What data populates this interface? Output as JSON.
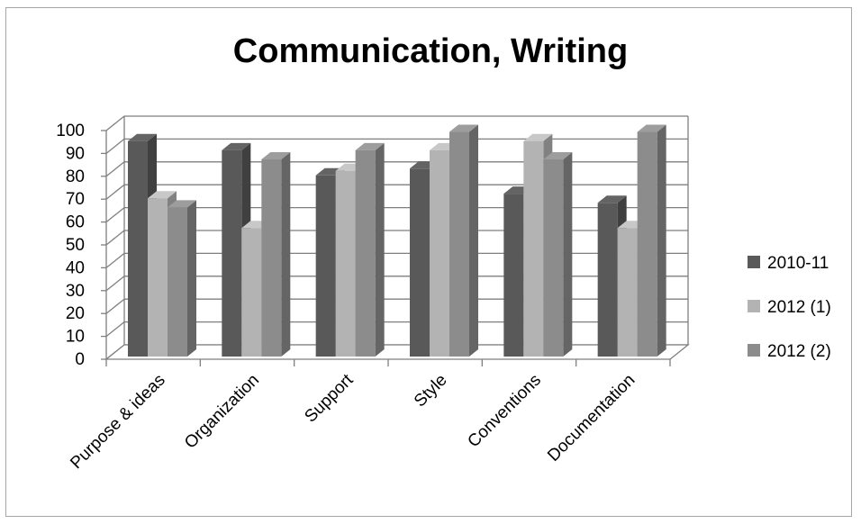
{
  "chart_data": {
    "type": "bar",
    "title": "Communication, Writing",
    "xlabel": "",
    "ylabel": "",
    "categories": [
      "Purpose & ideas",
      "Organization",
      "Support",
      "Style",
      "Conventions",
      "Documentation"
    ],
    "ylim": [
      0,
      100
    ],
    "yticks": [
      0,
      10,
      20,
      30,
      40,
      50,
      60,
      70,
      80,
      90,
      100
    ],
    "grid": true,
    "legend_position": "right",
    "series": [
      {
        "name": "2010-11",
        "color": "#595959",
        "values": [
          95,
          91,
          80,
          83,
          72,
          68
        ]
      },
      {
        "name": "2012 (1)",
        "color": "#b3b3b3",
        "values": [
          70,
          57,
          82,
          91,
          95,
          57
        ]
      },
      {
        "name": "2012 (2)",
        "color": "#8c8c8c",
        "values": [
          66,
          87,
          91,
          99,
          87,
          99
        ]
      }
    ]
  }
}
